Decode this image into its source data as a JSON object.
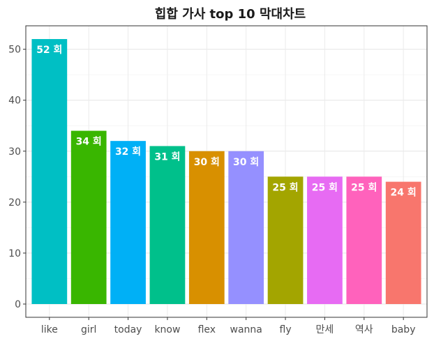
{
  "chart_data": {
    "type": "bar",
    "title": "힙합 가사 top 10 막대차트",
    "xlabel": "",
    "ylabel": "",
    "categories": [
      "like",
      "girl",
      "today",
      "know",
      "flex",
      "wanna",
      "fly",
      "만세",
      "역사",
      "baby"
    ],
    "values": [
      52,
      34,
      32,
      31,
      30,
      30,
      25,
      25,
      25,
      24
    ],
    "labels": [
      "52 회",
      "34 회",
      "32 회",
      "31 회",
      "30 회",
      "30 회",
      "25 회",
      "25 회",
      "25 회",
      "24 회"
    ],
    "colors": [
      "#00BFC4",
      "#39B600",
      "#00B0F6",
      "#00C08B",
      "#D89000",
      "#9590FF",
      "#A3A500",
      "#E76BF3",
      "#FF62BC",
      "#F8766D"
    ],
    "y_ticks": [
      0,
      10,
      20,
      30,
      40,
      50
    ],
    "ylim": [
      -2.6,
      54.6
    ],
    "grid": true,
    "legend": "none"
  }
}
